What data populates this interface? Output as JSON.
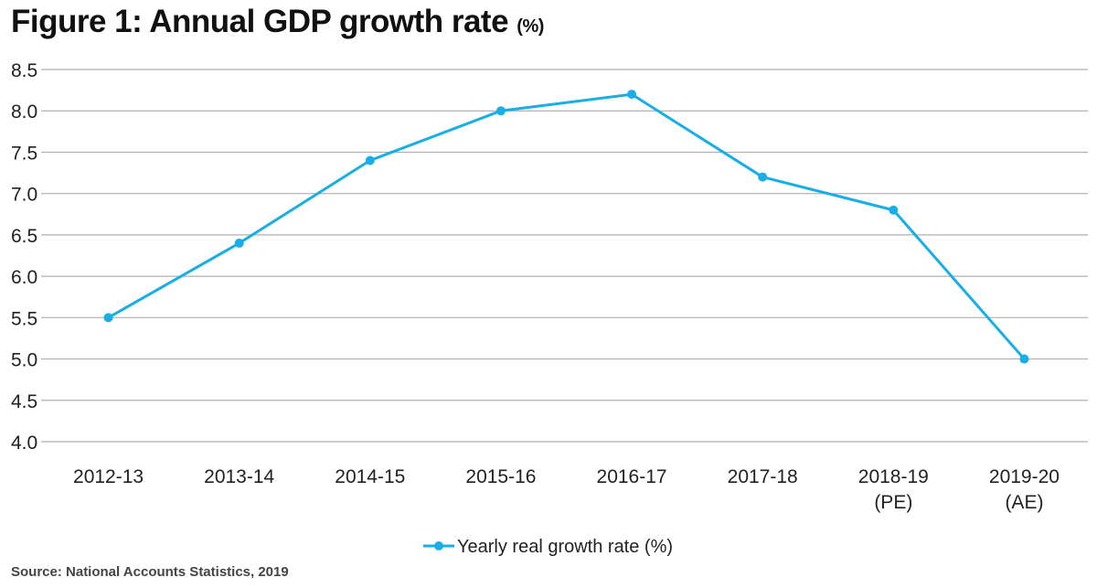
{
  "title": "Figure 1: Annual GDP growth rate",
  "title_unit": "(%)",
  "source": "Source: National Accounts Statistics, 2019",
  "chart_data": {
    "type": "line",
    "title": "Figure 1: Annual GDP growth rate (%)",
    "categories": [
      [
        "2012-13"
      ],
      [
        "2013-14"
      ],
      [
        "2014-15"
      ],
      [
        "2015-16"
      ],
      [
        "2016-17"
      ],
      [
        "2017-18"
      ],
      [
        "2018-19",
        "(PE)"
      ],
      [
        "2019-20",
        "(AE)"
      ]
    ],
    "series": [
      {
        "name": "Yearly real growth rate (%)",
        "values": [
          5.5,
          6.4,
          7.4,
          8.0,
          8.2,
          7.2,
          6.8,
          5.0
        ],
        "color": "#1aaee8"
      }
    ],
    "ylim": [
      4.0,
      8.5
    ],
    "yticks": [
      "4.0",
      "4.5",
      "5.0",
      "5.5",
      "6.0",
      "6.5",
      "7.0",
      "7.5",
      "8.0",
      "8.5"
    ],
    "grid": true,
    "legend": "bottom-center",
    "xlabel": "",
    "ylabel": ""
  }
}
